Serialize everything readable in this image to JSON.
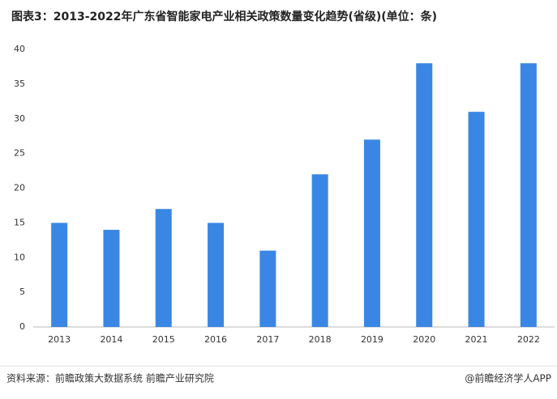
{
  "chart_data": {
    "type": "bar",
    "title": "图表3：2013-2022年广东省智能家电产业相关政策数量变化趋势(省级)(单位：条)",
    "categories": [
      "2013",
      "2014",
      "2015",
      "2016",
      "2017",
      "2018",
      "2019",
      "2020",
      "2021",
      "2022"
    ],
    "values": [
      15,
      14,
      17,
      15,
      11,
      22,
      27,
      38,
      31,
      38
    ],
    "color": "#3a86e4",
    "ylim": [
      0,
      40
    ],
    "yticks": [
      0,
      5,
      10,
      15,
      20,
      25,
      30,
      35,
      40
    ],
    "grid": false,
    "source": "资料来源：前瞻政策大数据系统 前瞻产业研究院",
    "credit": "@前瞻经济学人APP"
  }
}
